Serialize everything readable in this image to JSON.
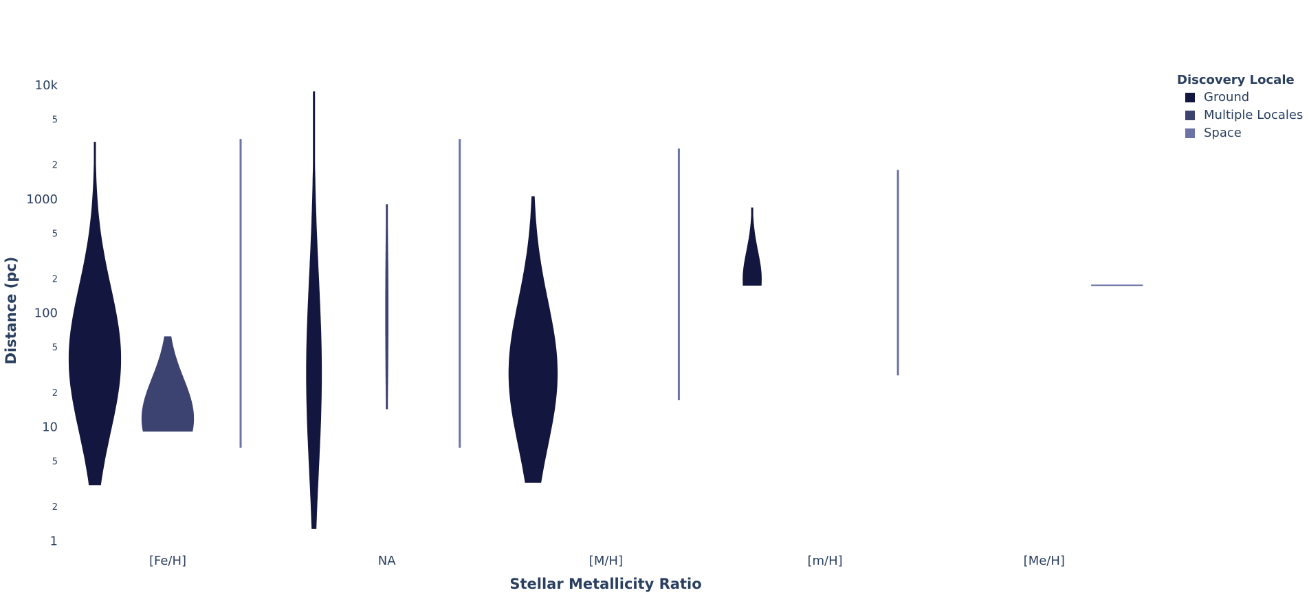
{
  "chart_data": {
    "type": "violin",
    "x_label": "Stellar Metallicity Ratio",
    "y_label": "Distance (pc)",
    "log_y": true,
    "categories": [
      "[Fe/H]",
      "NA",
      "[M/H]",
      "[m/H]",
      "[Me/H]"
    ],
    "ylim": [
      0.85,
      11000
    ],
    "yticks": [
      1,
      2,
      5,
      10,
      {
        "value": 20,
        "label": "2"
      },
      {
        "value": 50,
        "label": "5"
      },
      100,
      {
        "value": 200,
        "label": "2"
      },
      {
        "value": 500,
        "label": "5"
      },
      1000,
      {
        "value": 2000,
        "label": "2"
      },
      {
        "value": 5000,
        "label": "5"
      },
      {
        "value": 10000,
        "label": "10k"
      }
    ],
    "legend_title": "Discovery Locale",
    "legend_position": "top-right",
    "series": [
      {
        "name": "Ground",
        "color": "#13173f",
        "min": [
          3.15,
          1.3,
          3.3,
          178,
          null
        ],
        "mode": [
          40,
          30,
          30,
          200,
          null
        ],
        "max": [
          3200,
          8900,
          1070,
          850,
          null
        ]
      },
      {
        "name": "Multiple Locales",
        "color": "#3d4370",
        "min": [
          9.3,
          14.6,
          null,
          null,
          null
        ],
        "mode": [
          12,
          100,
          null,
          null,
          null
        ],
        "max": [
          63,
          910,
          null,
          null,
          null
        ]
      },
      {
        "name": "Space",
        "color": "#6b73a6",
        "min": [
          6.7,
          6.7,
          17.6,
          29,
          178
        ],
        "mode": [
          150,
          150,
          230,
          230,
          178
        ],
        "max": [
          3400,
          3400,
          2800,
          1820,
          178
        ]
      }
    ]
  }
}
